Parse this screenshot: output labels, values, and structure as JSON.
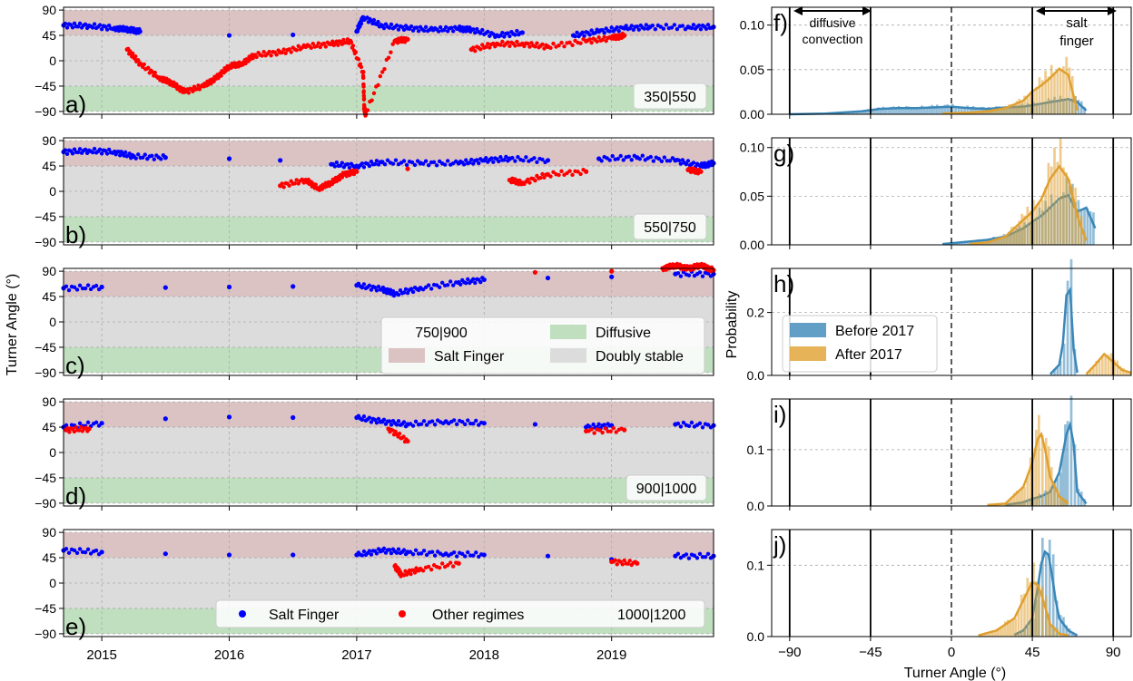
{
  "figure": {
    "left_ylabel": "Turner Angle (°)",
    "right_ylabel": "Probability",
    "right_xlabel": "Turner Angle (°)"
  },
  "colors": {
    "salt_finger_band": "#dbc3c3",
    "doubly_stable_band": "#dcdcdc",
    "diffusive_band": "#bfdfbf",
    "salt_finger_points": "#0000ff",
    "other_points": "#ff0000",
    "before_2017": "#3a87b8",
    "after_2017": "#e0a030"
  },
  "annotations": {
    "diffusive_convection": [
      "diffusive",
      "convection"
    ],
    "salt_finger": [
      "salt",
      "finger"
    ]
  },
  "legends": {
    "regimes": {
      "salt_finger": "Salt Finger",
      "diffusive": "Diffusive",
      "doubly_stable": "Doubly stable"
    },
    "points": {
      "salt_finger": "Salt Finger",
      "other": "Other regimes"
    },
    "periods": {
      "before": "Before 2017",
      "after": "After 2017"
    }
  },
  "chart_data": [
    {
      "type": "scatter",
      "panel": "a)",
      "depth_label": "350|550",
      "xlabel": "",
      "ylabel": "Turner Angle (°)",
      "x_ticks": [
        "2015",
        "2016",
        "2017",
        "2018",
        "2019"
      ],
      "y_ticks": [
        90,
        45,
        0,
        -45,
        -90
      ],
      "ylim": [
        -95,
        95
      ],
      "xlim": [
        2014.7,
        2019.8
      ],
      "regime_bands": {
        "salt_finger": [
          45,
          90
        ],
        "doubly_stable": [
          -45,
          45
        ],
        "diffusive": [
          -90,
          -45
        ]
      },
      "series": [
        {
          "label": "Salt Finger",
          "color": "blue",
          "x": [
            2014.7,
            2014.9,
            2015.1,
            2015.22,
            2015.3,
            2016.0,
            2016.5,
            2017.0,
            2017.05,
            2017.2,
            2017.4,
            2017.6,
            2017.8,
            2017.9,
            2018.1,
            2018.3,
            2018.7,
            2018.9,
            2019.1,
            2019.3,
            2019.6,
            2019.8
          ],
          "y": [
            63,
            62,
            58,
            55,
            52,
            45,
            46,
            52,
            77,
            62,
            58,
            55,
            57,
            55,
            45,
            50,
            45,
            52,
            58,
            60,
            60,
            60
          ]
        },
        {
          "label": "Other regimes",
          "color": "red",
          "x": [
            2015.2,
            2015.3,
            2015.45,
            2015.55,
            2015.65,
            2015.8,
            2015.9,
            2016.0,
            2016.1,
            2016.2,
            2016.4,
            2016.6,
            2016.8,
            2016.95,
            2017.05,
            2017.06,
            2017.07,
            2017.3,
            2017.4,
            2017.9,
            2018.1,
            2018.3,
            2018.5,
            2018.8,
            2019.0,
            2019.1
          ],
          "y": [
            20,
            -5,
            -30,
            -40,
            -55,
            -45,
            -30,
            -10,
            -5,
            10,
            15,
            25,
            30,
            35,
            -20,
            -85,
            -95,
            35,
            38,
            20,
            30,
            30,
            25,
            35,
            40,
            45
          ]
        }
      ]
    },
    {
      "type": "scatter",
      "panel": "b)",
      "depth_label": "550|750",
      "xlabel": "",
      "ylabel": "Turner Angle (°)",
      "x_ticks": [
        "2015",
        "2016",
        "2017",
        "2018",
        "2019"
      ],
      "y_ticks": [
        90,
        45,
        0,
        -45,
        -90
      ],
      "ylim": [
        -95,
        95
      ],
      "xlim": [
        2014.7,
        2019.8
      ],
      "regime_bands": {
        "salt_finger": [
          45,
          90
        ],
        "doubly_stable": [
          -45,
          45
        ],
        "diffusive": [
          -90,
          -45
        ]
      },
      "series": [
        {
          "label": "Salt Finger",
          "color": "blue",
          "x": [
            2014.7,
            2014.9,
            2015.1,
            2015.25,
            2015.5,
            2016.0,
            2016.4,
            2016.8,
            2017.0,
            2017.2,
            2017.5,
            2017.8,
            2018.0,
            2018.2,
            2018.5,
            2018.9,
            2019.2,
            2019.5,
            2019.7,
            2019.8
          ],
          "y": [
            70,
            72,
            70,
            62,
            60,
            58,
            55,
            48,
            45,
            52,
            50,
            50,
            55,
            58,
            55,
            58,
            60,
            55,
            45,
            50
          ]
        },
        {
          "label": "Other regimes",
          "color": "red",
          "x": [
            2016.4,
            2016.6,
            2016.7,
            2016.8,
            2016.9,
            2017.0,
            2017.4,
            2018.2,
            2018.3,
            2018.5,
            2018.8,
            2019.6,
            2019.7
          ],
          "y": [
            10,
            20,
            5,
            15,
            30,
            35,
            40,
            20,
            15,
            30,
            35,
            38,
            35
          ]
        }
      ]
    },
    {
      "type": "scatter",
      "panel": "c)",
      "depth_label": "750|900",
      "xlabel": "",
      "ylabel": "Turner Angle (°)",
      "x_ticks": [
        "2015",
        "2016",
        "2017",
        "2018",
        "2019"
      ],
      "y_ticks": [
        90,
        45,
        0,
        -45,
        -90
      ],
      "ylim": [
        -95,
        95
      ],
      "xlim": [
        2014.7,
        2019.8
      ],
      "regime_bands": {
        "salt_finger": [
          45,
          90
        ],
        "doubly_stable": [
          -45,
          45
        ],
        "diffusive": [
          -90,
          -45
        ]
      },
      "series": [
        {
          "label": "Salt Finger",
          "color": "blue",
          "x": [
            2014.7,
            2015.0,
            2015.5,
            2016.0,
            2016.5,
            2017.0,
            2017.2,
            2017.3,
            2017.5,
            2017.8,
            2018.0,
            2018.5,
            2019.0,
            2019.5,
            2019.8
          ],
          "y": [
            60,
            62,
            61,
            62,
            63,
            65,
            58,
            50,
            60,
            70,
            75,
            78,
            80,
            85,
            85
          ]
        },
        {
          "label": "Other regimes",
          "color": "red",
          "x": [
            2018.4,
            2019.0,
            2019.4,
            2019.5,
            2019.6,
            2019.7,
            2019.8
          ],
          "y": [
            88,
            90,
            95,
            100,
            95,
            100,
            92
          ]
        }
      ]
    },
    {
      "type": "scatter",
      "panel": "d)",
      "depth_label": "900|1000",
      "xlabel": "",
      "ylabel": "Turner Angle (°)",
      "x_ticks": [
        "2015",
        "2016",
        "2017",
        "2018",
        "2019"
      ],
      "y_ticks": [
        90,
        45,
        0,
        -45,
        -90
      ],
      "ylim": [
        -95,
        95
      ],
      "xlim": [
        2014.7,
        2019.8
      ],
      "regime_bands": {
        "salt_finger": [
          45,
          90
        ],
        "doubly_stable": [
          -45,
          45
        ],
        "diffusive": [
          -90,
          -45
        ]
      },
      "series": [
        {
          "label": "Salt Finger",
          "color": "blue",
          "x": [
            2014.7,
            2015.0,
            2015.5,
            2016.0,
            2016.5,
            2017.0,
            2017.2,
            2017.4,
            2017.7,
            2018.0,
            2018.4,
            2018.8,
            2019.0,
            2019.5,
            2019.8
          ],
          "y": [
            45,
            52,
            60,
            63,
            62,
            62,
            55,
            50,
            55,
            52,
            50,
            45,
            48,
            50,
            48
          ]
        },
        {
          "label": "Other regimes",
          "color": "red",
          "x": [
            2014.72,
            2014.9,
            2017.25,
            2017.4,
            2018.8,
            2019.1
          ],
          "y": [
            40,
            42,
            42,
            20,
            38,
            40
          ]
        }
      ]
    },
    {
      "type": "scatter",
      "panel": "e)",
      "depth_label": "1000|1200",
      "xlabel": "",
      "ylabel": "Turner Angle (°)",
      "x_ticks": [
        "2015",
        "2016",
        "2017",
        "2018",
        "2019"
      ],
      "y_ticks": [
        90,
        45,
        0,
        -45,
        -90
      ],
      "ylim": [
        -95,
        95
      ],
      "xlim": [
        2014.7,
        2019.8
      ],
      "regime_bands": {
        "salt_finger": [
          45,
          90
        ],
        "doubly_stable": [
          -45,
          45
        ],
        "diffusive": [
          -90,
          -45
        ]
      },
      "series": [
        {
          "label": "Salt Finger",
          "color": "blue",
          "x": [
            2014.7,
            2015.0,
            2015.5,
            2016.0,
            2016.5,
            2017.0,
            2017.2,
            2017.4,
            2017.7,
            2018.0,
            2018.5,
            2019.0,
            2019.5,
            2019.8
          ],
          "y": [
            58,
            55,
            52,
            50,
            50,
            50,
            58,
            55,
            52,
            50,
            48,
            42,
            48,
            48
          ]
        },
        {
          "label": "Other regimes",
          "color": "red",
          "x": [
            2017.3,
            2017.35,
            2017.5,
            2017.8,
            2019.0,
            2019.2
          ],
          "y": [
            30,
            15,
            25,
            35,
            38,
            35
          ]
        }
      ]
    },
    {
      "type": "bar",
      "panel": "f)",
      "xlim": [
        -100,
        100
      ],
      "ylim": [
        0,
        0.12
      ],
      "x_ticks": [
        -90,
        -45,
        0,
        45,
        90
      ],
      "y_ticks": [
        "0.00",
        "0.05",
        "0.10"
      ],
      "ylabel": "Probability",
      "xlabel": "Turner Angle (°)",
      "vertical_lines": [
        -90,
        -45,
        0,
        45,
        90
      ],
      "series": [
        {
          "name": "Before 2017",
          "x": [
            -90,
            -70,
            -50,
            -40,
            -30,
            -20,
            -10,
            0,
            5,
            10,
            20,
            30,
            40,
            45,
            50,
            55,
            60,
            65,
            70,
            75
          ],
          "values": [
            0,
            0.001,
            0.004,
            0.007,
            0.008,
            0.008,
            0.009,
            0.01,
            0.009,
            0.008,
            0.007,
            0.009,
            0.01,
            0.012,
            0.014,
            0.016,
            0.018,
            0.02,
            0.016,
            0.005
          ]
        },
        {
          "name": "After 2017",
          "x": [
            -5,
            10,
            20,
            30,
            40,
            45,
            50,
            55,
            60,
            65,
            70
          ],
          "values": [
            0.001,
            0.002,
            0.004,
            0.008,
            0.018,
            0.03,
            0.038,
            0.048,
            0.06,
            0.052,
            0.005
          ]
        }
      ]
    },
    {
      "type": "bar",
      "panel": "g)",
      "xlim": [
        -100,
        100
      ],
      "ylim": [
        0,
        0.11
      ],
      "x_ticks": [
        -90,
        -45,
        0,
        45,
        90
      ],
      "y_ticks": [
        "0.00",
        "0.05",
        "0.10"
      ],
      "ylabel": "Probability",
      "xlabel": "Turner Angle (°)",
      "vertical_lines": [
        -90,
        -45,
        0,
        45,
        90
      ],
      "series": [
        {
          "name": "Before 2017",
          "x": [
            -5,
            10,
            20,
            30,
            40,
            45,
            50,
            55,
            60,
            65,
            70,
            75,
            80
          ],
          "values": [
            0.001,
            0.004,
            0.006,
            0.01,
            0.02,
            0.028,
            0.035,
            0.045,
            0.056,
            0.06,
            0.04,
            0.045,
            0.02
          ]
        },
        {
          "name": "After 2017",
          "x": [
            10,
            20,
            30,
            40,
            45,
            50,
            55,
            60,
            65,
            70,
            75
          ],
          "values": [
            0.001,
            0.003,
            0.01,
            0.03,
            0.04,
            0.055,
            0.08,
            0.095,
            0.08,
            0.035,
            0.005
          ]
        }
      ]
    },
    {
      "type": "bar",
      "panel": "h)",
      "xlim": [
        -100,
        100
      ],
      "ylim": [
        0,
        0.34
      ],
      "x_ticks": [
        -90,
        -45,
        0,
        45,
        90
      ],
      "y_ticks": [
        "0.0",
        "0.2"
      ],
      "ylabel": "Probability",
      "xlabel": "Turner Angle (°)",
      "vertical_lines": [
        -90,
        -45,
        0,
        45,
        90
      ],
      "series": [
        {
          "name": "Before 2017",
          "x": [
            55,
            60,
            62,
            64,
            66,
            68,
            70
          ],
          "values": [
            0.005,
            0.04,
            0.12,
            0.3,
            0.32,
            0.1,
            0.01
          ]
        },
        {
          "name": "After 2017",
          "x": [
            75,
            80,
            85,
            90,
            95,
            100
          ],
          "values": [
            0.005,
            0.04,
            0.08,
            0.05,
            0.02,
            0.01
          ]
        }
      ]
    },
    {
      "type": "bar",
      "panel": "i)",
      "xlim": [
        -100,
        100
      ],
      "ylim": [
        0,
        0.19
      ],
      "x_ticks": [
        -90,
        -45,
        0,
        45,
        90
      ],
      "y_ticks": [
        "0.0",
        "0.1"
      ],
      "ylabel": "Probability",
      "xlabel": "Turner Angle (°)",
      "vertical_lines": [
        -90,
        -45,
        0,
        45,
        90
      ],
      "series": [
        {
          "name": "Before 2017",
          "x": [
            30,
            40,
            45,
            50,
            55,
            60,
            64,
            66,
            68,
            70,
            75
          ],
          "values": [
            0.002,
            0.008,
            0.015,
            0.02,
            0.03,
            0.07,
            0.15,
            0.17,
            0.13,
            0.03,
            0.005
          ]
        },
        {
          "name": "After 2017",
          "x": [
            20,
            30,
            40,
            45,
            48,
            50,
            52,
            55,
            60,
            65
          ],
          "values": [
            0.002,
            0.005,
            0.04,
            0.09,
            0.14,
            0.15,
            0.12,
            0.06,
            0.02,
            0.005
          ]
        }
      ]
    },
    {
      "type": "bar",
      "panel": "j)",
      "xlim": [
        -100,
        100
      ],
      "ylim": [
        0,
        0.15
      ],
      "x_ticks": [
        -90,
        -45,
        0,
        45,
        90
      ],
      "x_tick_labels": [
        "−90",
        "−45",
        "0",
        "45",
        "90"
      ],
      "y_ticks": [
        "0.0",
        "0.1"
      ],
      "ylabel": "Probability",
      "xlabel": "Turner Angle (°)",
      "vertical_lines": [
        -90,
        -45,
        0,
        45,
        90
      ],
      "series": [
        {
          "name": "Before 2017",
          "x": [
            35,
            40,
            45,
            48,
            50,
            52,
            54,
            56,
            58,
            60,
            65,
            70
          ],
          "values": [
            0.003,
            0.01,
            0.03,
            0.08,
            0.12,
            0.14,
            0.135,
            0.1,
            0.06,
            0.03,
            0.01,
            0.002
          ]
        },
        {
          "name": "After 2017",
          "x": [
            15,
            25,
            35,
            40,
            45,
            48,
            50,
            52,
            55,
            60,
            65
          ],
          "values": [
            0.002,
            0.01,
            0.03,
            0.06,
            0.09,
            0.085,
            0.07,
            0.05,
            0.02,
            0.005,
            0.002
          ]
        }
      ]
    }
  ]
}
